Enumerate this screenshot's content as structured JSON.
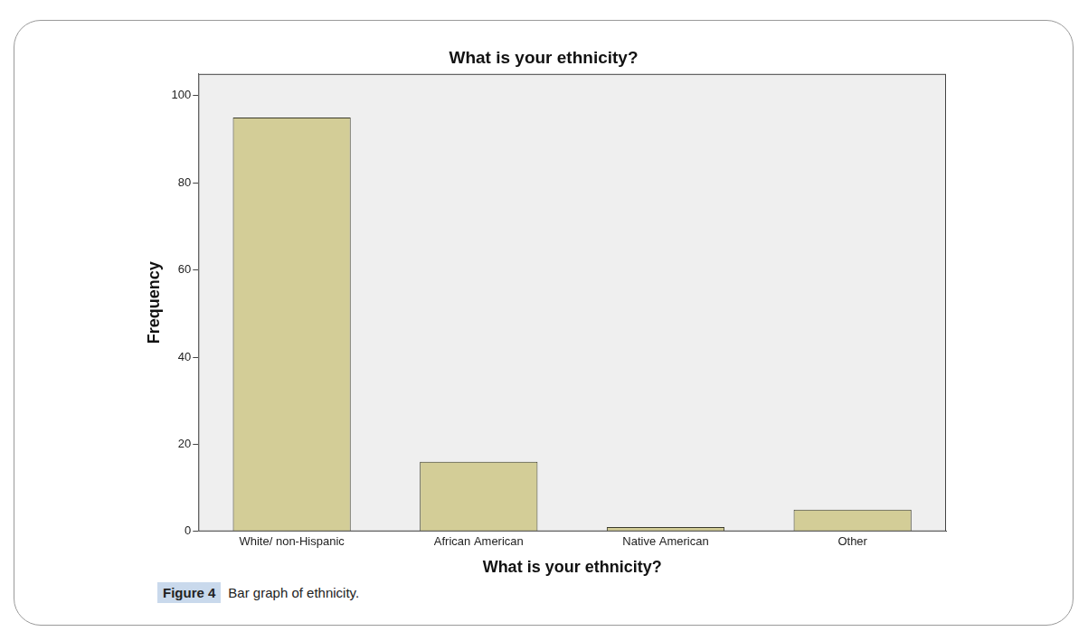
{
  "chart_data": {
    "type": "bar",
    "title": "What is your ethnicity?",
    "x_label": "What is your ethnicity?",
    "y_label": "Frequency",
    "categories": [
      "White/ non-Hispanic",
      "African American",
      "Native American",
      "Other"
    ],
    "values": [
      95,
      16,
      1,
      5
    ],
    "color": "#d3cd97",
    "ylim": [
      0,
      105
    ],
    "yticks": [
      0,
      20,
      40,
      60,
      80,
      100
    ],
    "grid": false,
    "caption": {
      "label": "Figure 4",
      "text": "Bar graph of ethnicity."
    }
  }
}
